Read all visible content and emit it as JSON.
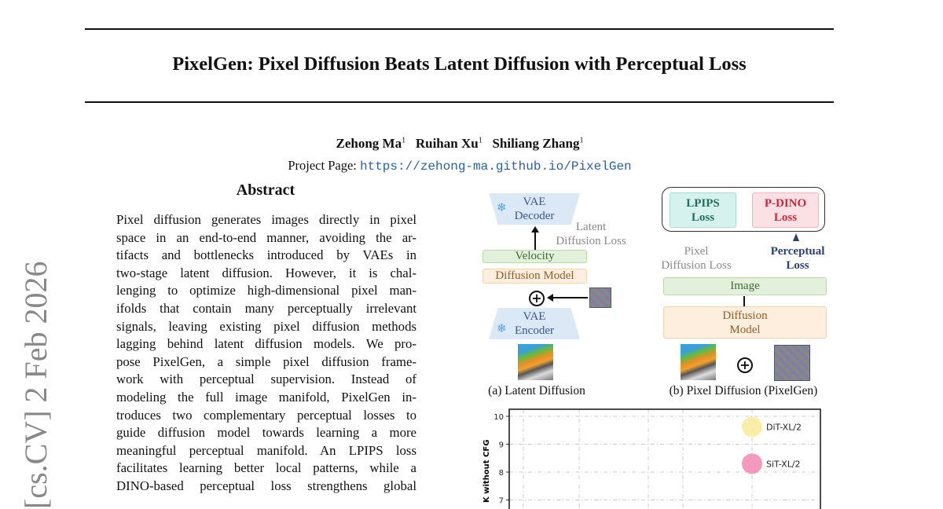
{
  "paper": {
    "title": "PixelGen: Pixel Diffusion Beats Latent Diffusion with Perceptual Loss",
    "authors": [
      {
        "name": "Zehong Ma",
        "aff": "1"
      },
      {
        "name": "Ruihan Xu",
        "aff": "1"
      },
      {
        "name": "Shiliang Zhang",
        "aff": "1"
      }
    ],
    "project_label": "Project Page:",
    "project_url": "https://zehong-ma.github.io/PixelGen",
    "arxiv_stamp": "[cs.CV]  2 Feb 2026",
    "abstract_heading": "Abstract",
    "abstract_lines": [
      "Pixel diffusion generates images directly in pixel",
      "space in an end-to-end manner, avoiding the ar-",
      "tifacts and bottlenecks introduced by VAEs in",
      "two-stage latent diffusion.  However, it is chal-",
      "lenging to optimize high-dimensional pixel man-",
      "ifolds that contain many perceptually irrelevant",
      "signals, leaving existing pixel diffusion methods",
      "lagging behind latent diffusion models.  We pro-",
      "pose PixelGen, a simple pixel diffusion frame-",
      "work with perceptual supervision.   Instead of",
      "modeling the full image manifold, PixelGen in-",
      "troduces two complementary perceptual losses to",
      "guide diffusion model towards learning a more",
      "meaningful perceptual manifold. An LPIPS loss",
      "facilitates learning better local patterns, while a",
      "DINO-based perceptual loss strengthens global"
    ]
  },
  "figure": {
    "a": {
      "vae_decoder": [
        "VAE",
        "Decoder"
      ],
      "latent_loss": [
        "Latent",
        "Diffusion Loss"
      ],
      "velocity": "Velocity",
      "diffusion_model": "Diffusion Model",
      "vae_encoder": [
        "VAE",
        "Encoder"
      ],
      "caption": "(a) Latent Diffusion"
    },
    "b": {
      "lpips": [
        "LPIPS",
        "Loss"
      ],
      "pdino": [
        "P-DINO",
        "Loss"
      ],
      "pixel_loss": [
        "Pixel",
        "Diffusion Loss"
      ],
      "perceptual_loss": [
        "Perceptual",
        "Loss"
      ],
      "image": "Image",
      "diffusion_model": [
        "Diffusion",
        "Model"
      ],
      "caption": "(b) Pixel Diffusion (PixelGen)"
    },
    "colors": {
      "lpips": "#1f6f5c",
      "pdino": "#d0263a",
      "perceptual": "#2b3f73"
    }
  },
  "chart_data": {
    "type": "scatter",
    "ylabel": "K without CFG",
    "yticks": [
      10,
      9,
      8,
      7
    ],
    "ylim": [
      6,
      10.25
    ],
    "grid": true,
    "points": [
      {
        "label": "DiT-XL/2",
        "y": 9.62,
        "color": "#f7eba0"
      },
      {
        "label": "SiT-XL/2",
        "y": 8.3,
        "color": "#f48fb8"
      }
    ]
  }
}
